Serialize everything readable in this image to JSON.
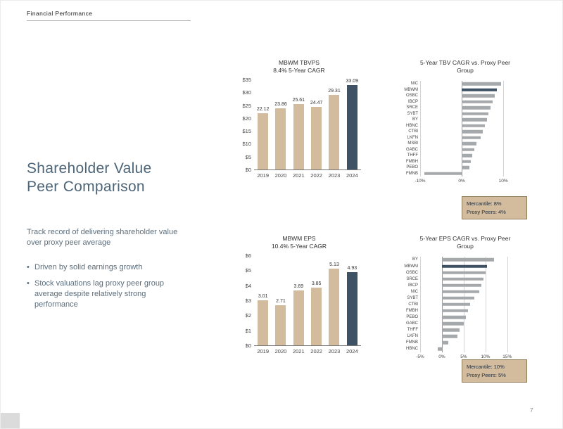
{
  "header": {
    "eyebrow": "Financial Performance"
  },
  "left": {
    "title_line1": "Shareholder Value",
    "title_line2": "Peer Comparison",
    "lead": "Track record of delivering shareholder value over proxy peer average",
    "bullets": [
      "Driven by solid earnings growth",
      "Stock valuations lag proxy peer group average despite relatively strong performance"
    ]
  },
  "callouts": [
    {
      "lines": [
        "Mercantile: 8%",
        "Proxy Peers: 4%"
      ]
    },
    {
      "lines": [
        "Mercantile: 10%",
        "Proxy Peers: 5%"
      ]
    }
  ],
  "footer": {
    "page_number": "7"
  },
  "colors": {
    "bar_tan": "#d3bc9d",
    "bar_highlight": "#3f5164",
    "bar_gray": "#a6a9ac",
    "callout_bg": "#d3bc9d",
    "callout_border": "#8e7c59",
    "title_text": "#4d6578"
  },
  "chart_data": [
    {
      "id": "tbvps",
      "type": "bar",
      "title": "MBWM TBVPS",
      "subtitle": "8.4% 5-Year CAGR",
      "categories": [
        "2019",
        "2020",
        "2021",
        "2022",
        "2023",
        "2024"
      ],
      "values": [
        22.12,
        23.86,
        25.61,
        24.47,
        29.31,
        33.09
      ],
      "highlight_index": 5,
      "ylim": [
        0,
        35
      ],
      "y_ticks": [
        "$0",
        "$5",
        "$10",
        "$15",
        "$20",
        "$25",
        "$30",
        "$35"
      ],
      "value_labels": true
    },
    {
      "id": "tbv-cagr",
      "type": "hbar",
      "title": "5-Year TBV CAGR vs. Proxy Peer",
      "subtitle": "Group",
      "categories": [
        "NIC",
        "MBWM",
        "OSBC",
        "IBCP",
        "SRCE",
        "SYBT",
        "BY",
        "HBNC",
        "CTBI",
        "LKFN",
        "MSBI",
        "GABC",
        "THFF",
        "FMBH",
        "PEBO",
        "FMNB"
      ],
      "values": [
        9.5,
        8.4,
        8.0,
        7.5,
        7.0,
        6.5,
        6.0,
        5.5,
        5.0,
        4.5,
        3.5,
        3.0,
        2.5,
        2.2,
        1.8,
        -9.0
      ],
      "highlight_category": "MBWM",
      "xlim": [
        -10,
        12
      ],
      "x_ticks": [
        {
          "v": -10,
          "label": "-10%"
        },
        {
          "v": 0,
          "label": "0%"
        },
        {
          "v": 10,
          "label": "10%"
        }
      ]
    },
    {
      "id": "eps",
      "type": "bar",
      "title": "MBWM EPS",
      "subtitle": "10.4% 5-Year CAGR",
      "categories": [
        "2019",
        "2020",
        "2021",
        "2022",
        "2023",
        "2024"
      ],
      "values": [
        3.01,
        2.71,
        3.69,
        3.85,
        5.13,
        4.93
      ],
      "highlight_index": 5,
      "ylim": [
        0,
        6
      ],
      "y_ticks": [
        "$0",
        "$1",
        "$2",
        "$3",
        "$4",
        "$5",
        "$6"
      ],
      "value_labels": true
    },
    {
      "id": "eps-cagr",
      "type": "hbar",
      "title": "5-Year EPS CAGR vs. Proxy Peer",
      "subtitle": "Group",
      "categories": [
        "BY",
        "MBWM",
        "OSBC",
        "SRCE",
        "IBCP",
        "NIC",
        "SYBT",
        "CTBI",
        "FMBH",
        "PEBO",
        "GABC",
        "THFF",
        "LKFN",
        "FMNB",
        "HBNC"
      ],
      "values": [
        12.0,
        10.4,
        10.0,
        9.5,
        9.0,
        8.5,
        7.5,
        6.5,
        6.0,
        5.5,
        5.0,
        4.0,
        3.5,
        1.5,
        -1.0
      ],
      "highlight_category": "MBWM",
      "xlim": [
        -5,
        16
      ],
      "x_ticks": [
        {
          "v": -5,
          "label": "-5%"
        },
        {
          "v": 0,
          "label": "0%"
        },
        {
          "v": 5,
          "label": "5%"
        },
        {
          "v": 10,
          "label": "10%"
        },
        {
          "v": 15,
          "label": "15%"
        }
      ]
    }
  ]
}
